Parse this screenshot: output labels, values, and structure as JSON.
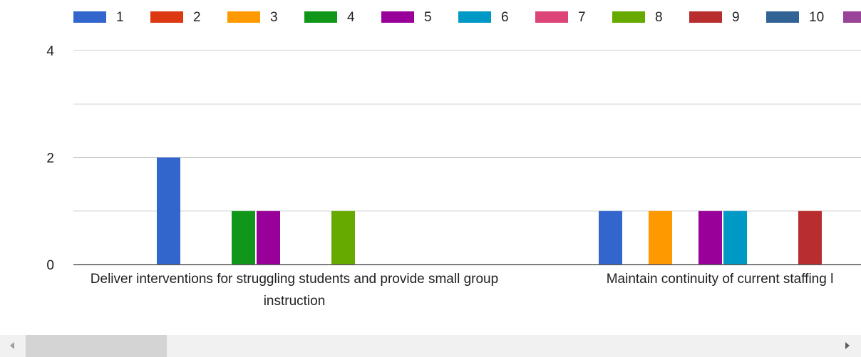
{
  "chart_data": {
    "type": "bar",
    "legend_position": "top",
    "ylim": [
      0,
      4
    ],
    "yticks": [
      "0",
      "2",
      "4"
    ],
    "grid": true,
    "categories": [
      "Deliver interventions for struggling students and provide small group instruction",
      "Maintain continuity of current staffing l"
    ],
    "series": [
      {
        "name": "1",
        "color": "#3366cc",
        "values": [
          2,
          1
        ]
      },
      {
        "name": "2",
        "color": "#dc3912",
        "values": [
          0,
          0
        ]
      },
      {
        "name": "3",
        "color": "#ff9900",
        "values": [
          0,
          1
        ]
      },
      {
        "name": "4",
        "color": "#109618",
        "values": [
          1,
          0
        ]
      },
      {
        "name": "5",
        "color": "#990099",
        "values": [
          1,
          1
        ]
      },
      {
        "name": "6",
        "color": "#0099c6",
        "values": [
          0,
          1
        ]
      },
      {
        "name": "7",
        "color": "#dd4477",
        "values": [
          0,
          0
        ]
      },
      {
        "name": "8",
        "color": "#66aa00",
        "values": [
          1,
          0
        ]
      },
      {
        "name": "9",
        "color": "#b82e2e",
        "values": [
          0,
          1
        ]
      },
      {
        "name": "10",
        "color": "#316395",
        "values": [
          0,
          0
        ]
      },
      {
        "name": "",
        "color": "#994499",
        "values": [
          0,
          0
        ]
      }
    ]
  }
}
